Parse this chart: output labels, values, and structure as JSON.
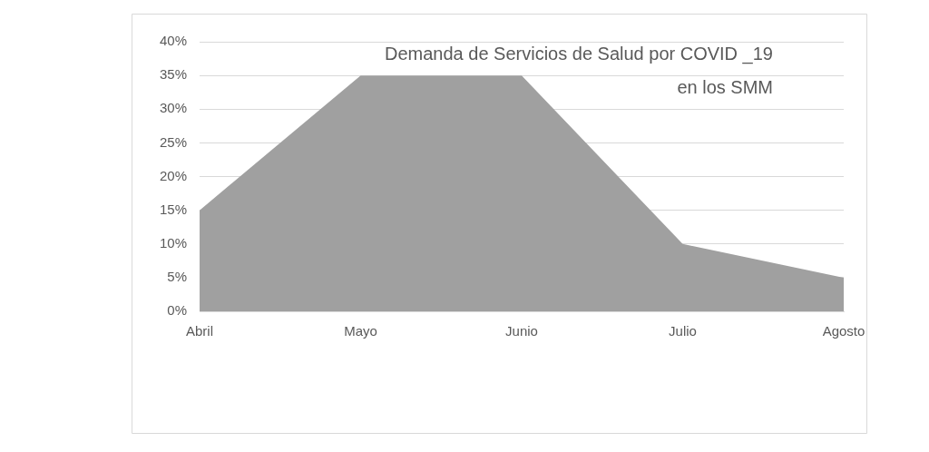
{
  "chart_data": {
    "type": "area",
    "title": "Demanda de Servicios de Salud por COVID _19\nen los SMM",
    "categories": [
      "Abril",
      "Mayo",
      "Junio",
      "Julio",
      "Agosto"
    ],
    "series": [
      {
        "color": "#a0a0a0",
        "values": [
          15,
          35,
          35,
          10,
          5
        ]
      }
    ],
    "ylim": [
      0,
      40
    ],
    "yticks": [
      {
        "value": 0,
        "label": "0%"
      },
      {
        "value": 5,
        "label": "5%"
      },
      {
        "value": 10,
        "label": "10%"
      },
      {
        "value": 15,
        "label": "15%"
      },
      {
        "value": 20,
        "label": "20%"
      },
      {
        "value": 25,
        "label": "25%"
      },
      {
        "value": 30,
        "label": "30%"
      },
      {
        "value": 35,
        "label": "35%"
      },
      {
        "value": 40,
        "label": "40%"
      }
    ],
    "grid": "y",
    "legend": false
  }
}
